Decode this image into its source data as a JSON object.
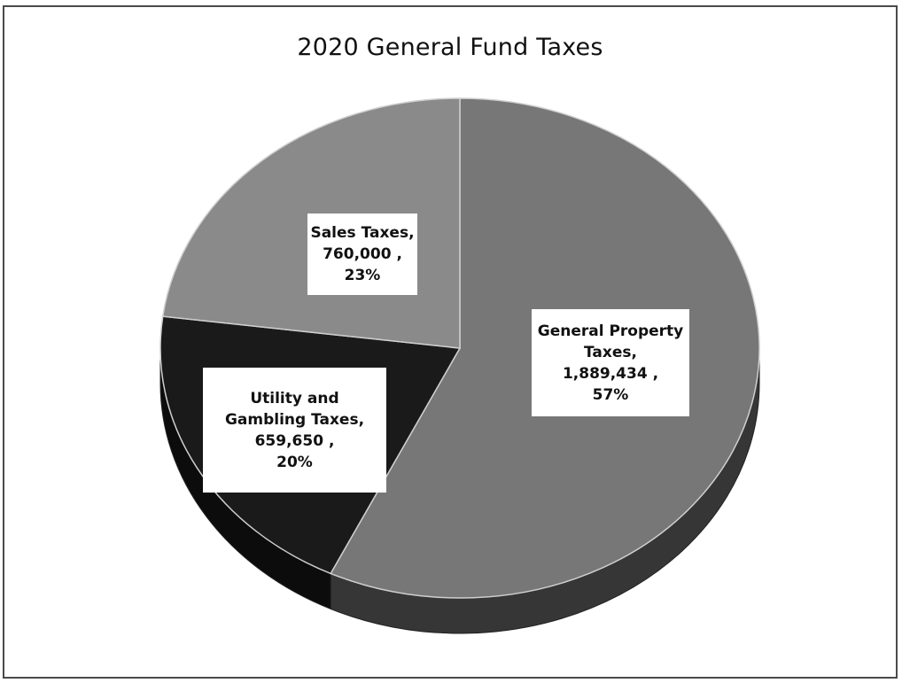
{
  "chart_data": {
    "type": "pie",
    "title": "2020 General Fund Taxes",
    "slices": [
      {
        "name": "General Property Taxes",
        "value": 1889434,
        "percent": 57,
        "value_label": "1,889,434",
        "label_lines": [
          "General Property",
          "Taxes,",
          "1,889,434 ,",
          "57%"
        ],
        "color": "#777777"
      },
      {
        "name": "Utility and Gambling Taxes",
        "value": 659650,
        "percent": 20,
        "value_label": "659,650",
        "label_lines": [
          "Utility and",
          "Gambling Taxes,",
          "659,650 ,",
          "20%"
        ],
        "color": "#1a1a1a"
      },
      {
        "name": "Sales Taxes",
        "value": 760000,
        "percent": 23,
        "value_label": "760,000",
        "label_lines": [
          "Sales Taxes,",
          "760,000 ,",
          "23%"
        ],
        "color": "#8a8a8a"
      }
    ],
    "legend": "none",
    "style": "3d"
  }
}
